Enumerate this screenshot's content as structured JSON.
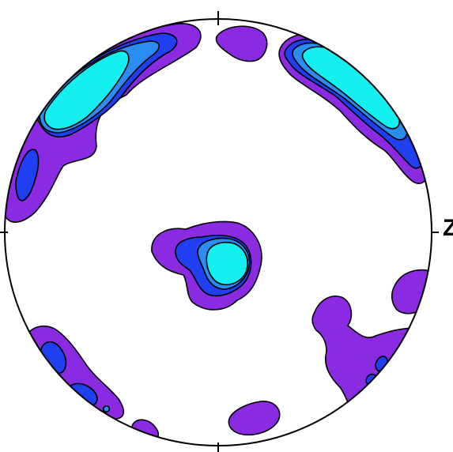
{
  "figure": {
    "type": "stereographic pole figure",
    "axis_labels": {
      "right": "Z"
    },
    "contour_colors": {
      "level_1": "#8a2be2",
      "level_2": "#1f3ff0",
      "level_3": "#2b8cf2",
      "level_4": "#14f0f0"
    }
  }
}
